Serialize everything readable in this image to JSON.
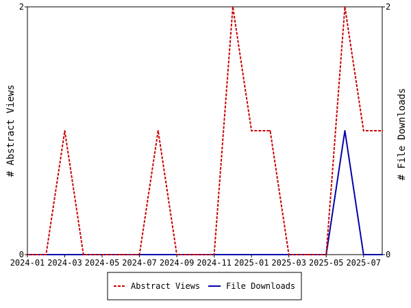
{
  "chart_data": {
    "type": "line",
    "x": [
      "2024-01",
      "2024-02",
      "2024-03",
      "2024-04",
      "2024-05",
      "2024-06",
      "2024-07",
      "2024-08",
      "2024-09",
      "2024-10",
      "2024-11",
      "2024-12",
      "2025-01",
      "2025-02",
      "2025-03",
      "2025-04",
      "2025-05",
      "2025-06",
      "2025-07",
      "2025-08"
    ],
    "x_tick_labels": [
      "2024-01",
      "2024-03",
      "2024-05",
      "2024-07",
      "2024-09",
      "2024-11",
      "2025-01",
      "2025-03",
      "2025-05",
      "2025-07"
    ],
    "series": [
      {
        "name": "Abstract Views",
        "axis": "left",
        "color": "#cc0000",
        "style": "dashed",
        "values": [
          0,
          0,
          1,
          0,
          0,
          0,
          0,
          1,
          0,
          0,
          0,
          2,
          1,
          1,
          0,
          0,
          0,
          2,
          1,
          1
        ]
      },
      {
        "name": "File Downloads",
        "axis": "right",
        "color": "#0000aa",
        "style": "solid",
        "values": [
          0,
          0,
          0,
          0,
          0,
          0,
          0,
          0,
          0,
          0,
          0,
          0,
          0,
          0,
          0,
          0,
          0,
          1,
          0,
          0
        ]
      }
    ],
    "ylabel_left": "# Abstract Views",
    "ylabel_right": "# File Downloads",
    "ylim_left": [
      0,
      2
    ],
    "ylim_right": [
      0,
      2
    ],
    "y_ticks_left": [
      "0",
      "2"
    ],
    "y_ticks_right": [
      "0",
      "2"
    ],
    "grid": false,
    "legend_position": "bottom"
  }
}
